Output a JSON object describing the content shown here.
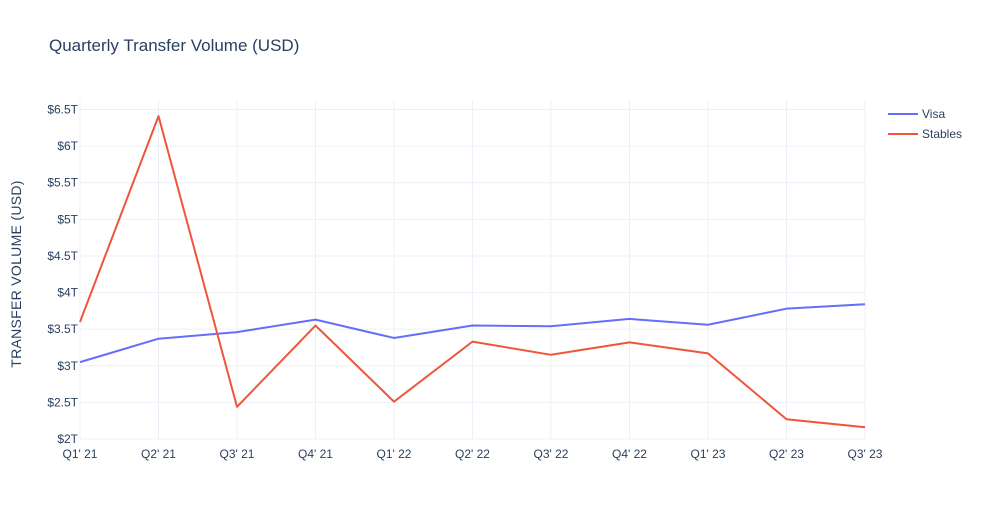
{
  "chart_data": {
    "type": "line",
    "title": "Quarterly Transfer Volume (USD)",
    "xlabel": "",
    "ylabel": "TRANSFER VOLUME (USD)",
    "categories": [
      "Q1' 21",
      "Q2' 21",
      "Q3' 21",
      "Q4' 21",
      "Q1' 22",
      "Q2' 22",
      "Q3' 22",
      "Q4' 22",
      "Q1' 23",
      "Q2' 23",
      "Q3' 23"
    ],
    "y_ticks": [
      {
        "value": 2.0,
        "label": "$2T"
      },
      {
        "value": 2.5,
        "label": "$2.5T"
      },
      {
        "value": 3.0,
        "label": "$3T"
      },
      {
        "value": 3.5,
        "label": "$3.5T"
      },
      {
        "value": 4.0,
        "label": "$4T"
      },
      {
        "value": 4.5,
        "label": "$4.5T"
      },
      {
        "value": 5.0,
        "label": "$5T"
      },
      {
        "value": 5.5,
        "label": "$5.5T"
      },
      {
        "value": 6.0,
        "label": "$6T"
      },
      {
        "value": 6.5,
        "label": "$6.5T"
      }
    ],
    "ylim": [
      2.0,
      6.63
    ],
    "y_unit": "trillion USD",
    "grid": true,
    "legend_position": "top-right",
    "series": [
      {
        "name": "Visa",
        "color": "#636efa",
        "values": [
          3.05,
          3.37,
          3.46,
          3.63,
          3.38,
          3.55,
          3.54,
          3.64,
          3.56,
          3.78,
          3.84
        ]
      },
      {
        "name": "Stables",
        "color": "#ef553b",
        "values": [
          3.6,
          6.41,
          2.44,
          3.55,
          2.51,
          3.33,
          3.15,
          3.32,
          3.17,
          2.27,
          2.16
        ]
      }
    ]
  }
}
